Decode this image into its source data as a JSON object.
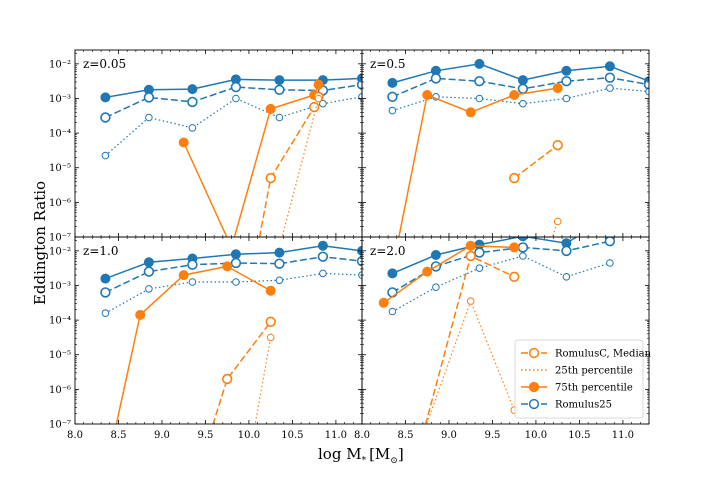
{
  "colors": {
    "romulusc": "#ff7f0e",
    "romulus25": "#1f77b4",
    "axis": "#000000"
  },
  "chart_data": {
    "type": "line",
    "ylabel": "Eddington Ratio",
    "xlabel": "log M",
    "xlabel_sub": "*",
    "xlabel_unit_open": "[M",
    "xlabel_unit_sub": "⊙",
    "xlabel_unit_close": "]",
    "xlim": [
      8.0,
      11.3
    ],
    "ylim_log10": [
      -7,
      -1.6
    ],
    "xticks": [
      "8.0",
      "8.5",
      "9.0",
      "9.5",
      "10.0",
      "10.5",
      "11.0"
    ],
    "xtick_values": [
      8.0,
      8.5,
      9.0,
      9.5,
      10.0,
      10.5,
      11.0
    ],
    "yticks": [
      "10⁻²",
      "10⁻³",
      "10⁻⁴",
      "10⁻⁵",
      "10⁻⁶",
      "10⁻⁷"
    ],
    "ytick_values_log10": [
      -2,
      -3,
      -4,
      -5,
      -6,
      -7
    ],
    "legend": {
      "location": "lower right of bottom-right panel",
      "entries": [
        {
          "label": "RomulusC, Median",
          "style": "median"
        },
        {
          "label": "25th percentile",
          "style": "p25"
        },
        {
          "label": "75th percentile",
          "style": "p75"
        },
        {
          "label": "Romulus25",
          "style": "romulus25"
        }
      ]
    },
    "panels": [
      {
        "label": "z=0.05",
        "series": [
          {
            "name": "Romulus25 75th",
            "sim": "romulus25",
            "style": "p75",
            "x": [
              8.35,
              8.85,
              9.35,
              9.85,
              10.35,
              10.85,
              11.3
            ],
            "y": [
              -2.97,
              -2.75,
              -2.73,
              -2.45,
              -2.47,
              -2.47,
              -2.42
            ]
          },
          {
            "name": "Romulus25 Median",
            "sim": "romulus25",
            "style": "median",
            "x": [
              8.35,
              8.85,
              9.35,
              9.85,
              10.35,
              10.85,
              11.3
            ],
            "y": [
              -3.55,
              -2.97,
              -3.1,
              -2.67,
              -2.75,
              -2.77,
              -2.6
            ]
          },
          {
            "name": "Romulus25 25th",
            "sim": "romulus25",
            "style": "p25",
            "x": [
              8.35,
              8.85,
              9.35,
              9.85,
              10.35,
              10.85,
              11.3
            ],
            "y": [
              -4.65,
              -3.55,
              -3.85,
              -3.0,
              -3.55,
              -3.15,
              -2.95
            ]
          },
          {
            "name": "RomulusC 75th",
            "sim": "romulusc",
            "style": "p75",
            "x": [
              9.25,
              9.8,
              10.25,
              10.75,
              10.8
            ],
            "y": [
              -4.27,
              -7.3,
              -3.3,
              -2.9,
              -2.6
            ]
          },
          {
            "name": "RomulusC Median",
            "sim": "romulusc",
            "style": "median",
            "x": [
              10.1,
              10.25,
              10.75,
              10.8
            ],
            "y": [
              -7.3,
              -5.3,
              -3.25,
              -2.95
            ]
          },
          {
            "name": "RomulusC 25th",
            "sim": "romulusc",
            "style": "p25",
            "x": [
              10.35,
              10.8
            ],
            "y": [
              -7.3,
              -3.0
            ]
          }
        ]
      },
      {
        "label": "z=0.5",
        "series": [
          {
            "name": "Romulus25 75th",
            "sim": "romulus25",
            "style": "p75",
            "x": [
              8.35,
              8.85,
              9.35,
              9.85,
              10.35,
              10.85,
              11.3
            ],
            "y": [
              -2.55,
              -2.2,
              -2.0,
              -2.47,
              -2.2,
              -2.07,
              -2.5
            ]
          },
          {
            "name": "Romulus25 Median",
            "sim": "romulus25",
            "style": "median",
            "x": [
              8.35,
              8.85,
              9.35,
              9.85,
              10.35,
              10.85,
              11.3
            ],
            "y": [
              -2.95,
              -2.42,
              -2.5,
              -2.72,
              -2.5,
              -2.4,
              -2.6
            ]
          },
          {
            "name": "Romulus25 25th",
            "sim": "romulus25",
            "style": "p25",
            "x": [
              8.35,
              8.85,
              9.35,
              9.85,
              10.35,
              10.85,
              11.3
            ],
            "y": [
              -3.35,
              -2.95,
              -3.0,
              -3.15,
              -3.0,
              -2.7,
              -2.8
            ]
          },
          {
            "name": "RomulusC 75th",
            "sim": "romulusc",
            "style": "p75",
            "x": [
              8.4,
              8.75,
              9.25,
              9.75,
              10.25
            ],
            "y": [
              -7.3,
              -2.9,
              -3.4,
              -2.9,
              -2.7
            ]
          },
          {
            "name": "RomulusC Median",
            "sim": "romulusc",
            "style": "median",
            "x": [
              9.75,
              10.25
            ],
            "y": [
              -5.3,
              -4.35
            ]
          },
          {
            "name": "RomulusC 25th",
            "sim": "romulusc",
            "style": "p25",
            "x": [
              10.15,
              10.25
            ],
            "y": [
              -7.3,
              -6.55
            ]
          }
        ]
      },
      {
        "label": "z=1.0",
        "series": [
          {
            "name": "Romulus25 75th",
            "sim": "romulus25",
            "style": "p75",
            "x": [
              8.35,
              8.85,
              9.35,
              9.85,
              10.35,
              10.85,
              11.3
            ],
            "y": [
              -2.8,
              -2.33,
              -2.22,
              -2.1,
              -2.05,
              -1.85,
              -2.0
            ]
          },
          {
            "name": "Romulus25 Median",
            "sim": "romulus25",
            "style": "median",
            "x": [
              8.35,
              8.85,
              9.35,
              9.85,
              10.35,
              10.85,
              11.3
            ],
            "y": [
              -3.2,
              -2.6,
              -2.4,
              -2.35,
              -2.37,
              -2.17,
              -2.3
            ]
          },
          {
            "name": "Romulus25 25th",
            "sim": "romulus25",
            "style": "p25",
            "x": [
              8.35,
              8.85,
              9.35,
              9.85,
              10.35,
              10.85,
              11.3
            ],
            "y": [
              -3.8,
              -3.1,
              -2.9,
              -2.9,
              -2.85,
              -2.65,
              -2.7
            ]
          },
          {
            "name": "RomulusC 75th",
            "sim": "romulusc",
            "style": "p75",
            "x": [
              8.45,
              8.75,
              9.25,
              9.75,
              10.25
            ],
            "y": [
              -7.3,
              -3.85,
              -2.7,
              -2.45,
              -3.15
            ]
          },
          {
            "name": "RomulusC Median",
            "sim": "romulusc",
            "style": "median",
            "x": [
              9.55,
              9.75,
              10.25
            ],
            "y": [
              -7.3,
              -5.7,
              -4.05
            ]
          },
          {
            "name": "RomulusC 25th",
            "sim": "romulusc",
            "style": "p25",
            "x": [
              10.05,
              10.25
            ],
            "y": [
              -7.3,
              -4.5
            ]
          }
        ]
      },
      {
        "label": "z=2.0",
        "series": [
          {
            "name": "Romulus25 75th",
            "sim": "romulus25",
            "style": "p75",
            "x": [
              8.35,
              8.85,
              9.35,
              9.85,
              10.35,
              10.85
            ],
            "y": [
              -2.65,
              -2.12,
              -1.82,
              -1.58,
              -1.78,
              -1.0
            ]
          },
          {
            "name": "Romulus25 Median",
            "sim": "romulus25",
            "style": "median",
            "x": [
              8.35,
              8.85,
              9.35,
              9.85,
              10.35,
              10.85
            ],
            "y": [
              -3.2,
              -2.45,
              -2.05,
              -1.9,
              -2.0,
              -1.72
            ]
          },
          {
            "name": "Romulus25 25th",
            "sim": "romulus25",
            "style": "p25",
            "x": [
              8.35,
              8.85,
              9.35,
              9.85,
              10.35,
              10.85
            ],
            "y": [
              -3.75,
              -3.05,
              -2.5,
              -2.15,
              -2.75,
              -2.35
            ]
          },
          {
            "name": "RomulusC 75th",
            "sim": "romulusc",
            "style": "p75",
            "x": [
              8.25,
              8.75,
              9.25,
              9.75
            ],
            "y": [
              -3.5,
              -2.6,
              -1.85,
              -1.9
            ]
          },
          {
            "name": "RomulusC Median",
            "sim": "romulusc",
            "style": "median",
            "x": [
              8.7,
              9.25,
              9.75
            ],
            "y": [
              -7.3,
              -2.15,
              -2.75
            ]
          },
          {
            "name": "RomulusC 25th",
            "sim": "romulusc",
            "style": "p25",
            "x": [
              8.7,
              9.25,
              9.75
            ],
            "y": [
              -7.3,
              -3.45,
              -6.6
            ]
          }
        ]
      }
    ]
  }
}
